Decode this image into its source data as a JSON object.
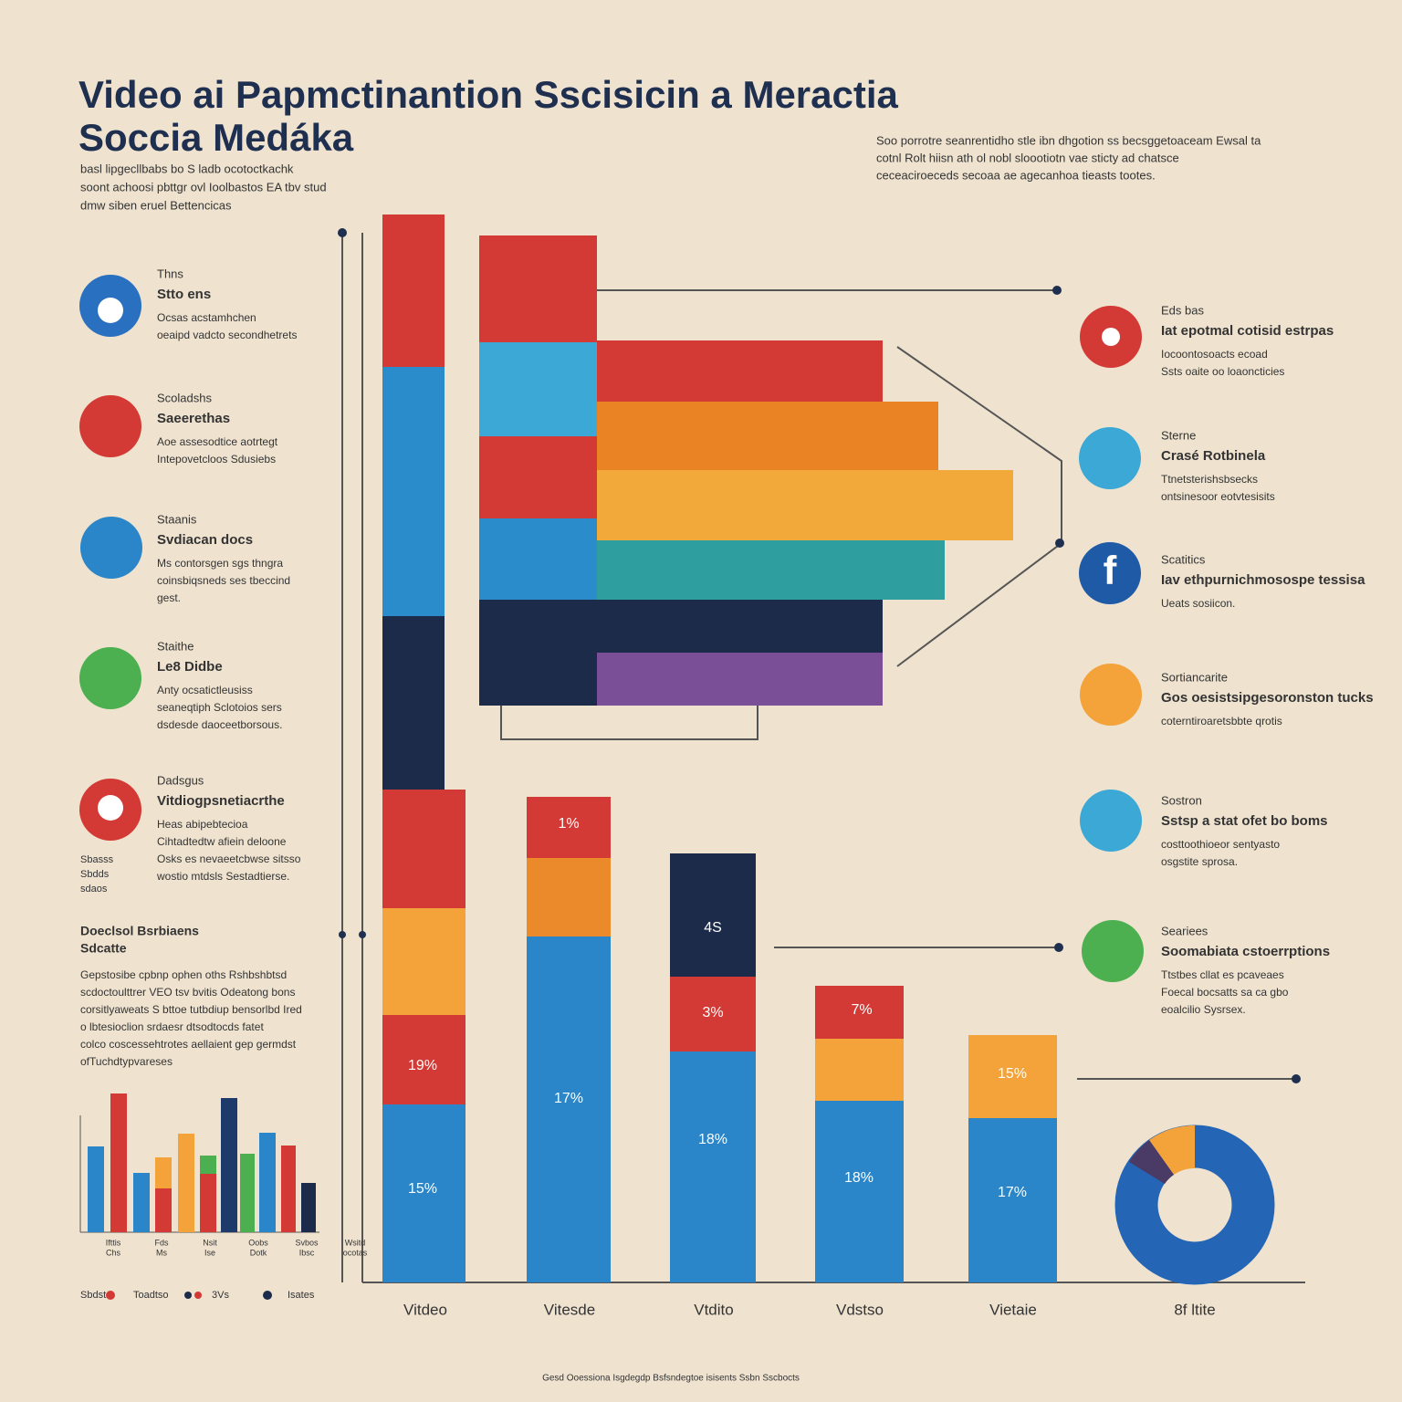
{
  "header": {
    "title_lines": [
      "Video ai Papmctinantion Sscisicin a Meractia",
      "Soccia Medáka"
    ],
    "subtitle_lines": [
      "basl lipgecllbabs bo S ladb ocotoctkachk",
      "soont achoosi pbttgr ovl Ioolbastos EA tbv stud",
      "dmw siben eruel Bettencicas"
    ]
  },
  "intro_lines": [
    "Soo porrotre seanrentidho stle ibn dhgotion ss becsggetoaceam Ewsal ta",
    "cotnl Rolt hiisn ath ol nobl sloootiotn vae sticty ad chatsce",
    "ceceaciroeceds secoaa ae agecanhoa tieasts tootes."
  ],
  "left_items": [
    {
      "lines": [
        "Thns",
        "Stto ens",
        "Ocsas acstamhchen",
        "oeaipd vadcto secondhetrets"
      ]
    },
    {
      "lines": [
        "Scoladshs",
        "Saeerethas",
        "Aoe assesodtice aotrtegt",
        "Intepovetcloos Sdusiebs"
      ]
    },
    {
      "lines": [
        "Staanis",
        "Svdiacan docs",
        "Ms contorsgen sgs thngra",
        "coinsbiqsneds ses tbeccind",
        "gest."
      ]
    },
    {
      "lines": [
        "Staithe",
        "Le8 Didbe",
        "Anty ocsatictleusiss",
        "seaneqtiph Sclotoios sers",
        "dsdesde daoceetborsous."
      ]
    },
    {
      "lines": [
        "Dadsgus",
        "Vitdiogpsnetiacrthe",
        "Heas abipebtecioa",
        "Cihtadtedtw afiein deloone",
        "Osks es nevaeetcbwse sitsso",
        "wostio mtdsls Sestadtierse."
      ]
    }
  ],
  "left_side_notes": [
    "Sbasss",
    "Sbdds",
    "sdaos"
  ],
  "left_section": {
    "heading_lines": [
      "Doeclsol Bsrbiaens",
      "Sdcatte"
    ],
    "lines": [
      "Gepstosibe cpbnp ophen oths Rshbshbtsd",
      "scdoctoulttrer VEO tsv bvitis Odeatong bons",
      "corsitlyaweats S bttoe tutbdiup bensorlbd Ired",
      "o lbtesioclion srdaesr dtsodtocds fatet",
      "colco coscessehtrotes aellaient gep germdst",
      "ofTuchdtypvareses"
    ]
  },
  "right_items": [
    {
      "lines": [
        "Eds bas",
        "Iat epotmal cotisid estrpas",
        "Iocoontosoacts ecoad",
        "Ssts oaite oo loaoncticies"
      ]
    },
    {
      "lines": [
        "Sterne",
        "Crasé Rotbinela",
        "Ttnetsterishsbsecks",
        "ontsinesoor eotvtesisits"
      ]
    },
    {
      "lines": [
        "Scatitics",
        "Iav ethpurnichmosospe tessisa",
        "Ueats sosiicon."
      ]
    },
    {
      "lines": [
        "Sortiancarite",
        "Gos oesistsipgesoronston tucks",
        "coterntiroaretsbbte qrotis"
      ]
    },
    {
      "lines": [
        "Sostron",
        "Sstsp a stat ofet bo boms",
        "costtoothioeor sentyasto",
        "osgstite sprosa."
      ]
    },
    {
      "lines": [
        "Seariees",
        "Soomabiata cstoerrptions",
        "Ttstbes cllat es pcaveaes",
        "Foecal bocsatts sa ca gbo",
        "eoalcilio Sysrsex."
      ]
    }
  ],
  "bar_labels": [
    "1%",
    "4S",
    "3%",
    "7%",
    "19%",
    "17%",
    "18%",
    "18%",
    "15%",
    "15%",
    "17%"
  ],
  "x_labels": [
    "Vitdeo",
    "Vitesde",
    "Vtdito",
    "Vdstso",
    "Vietaie",
    "8f ltite"
  ],
  "mini_chart_labels": [
    "Ifttis",
    "Chs",
    "Fds",
    "Ms",
    "Nsit",
    "Ise",
    "Oobs",
    "Dotk",
    "Svbos",
    "Ibsc",
    "Wsitd",
    "ocotas"
  ],
  "legend": [
    "Sbdst",
    "Toadtso",
    "3Vs",
    "Isates"
  ],
  "footer": "Gesd Ooessiona Isgdegdp  Bsfsndegtoe isisents Ssbn Sscbocts"
}
